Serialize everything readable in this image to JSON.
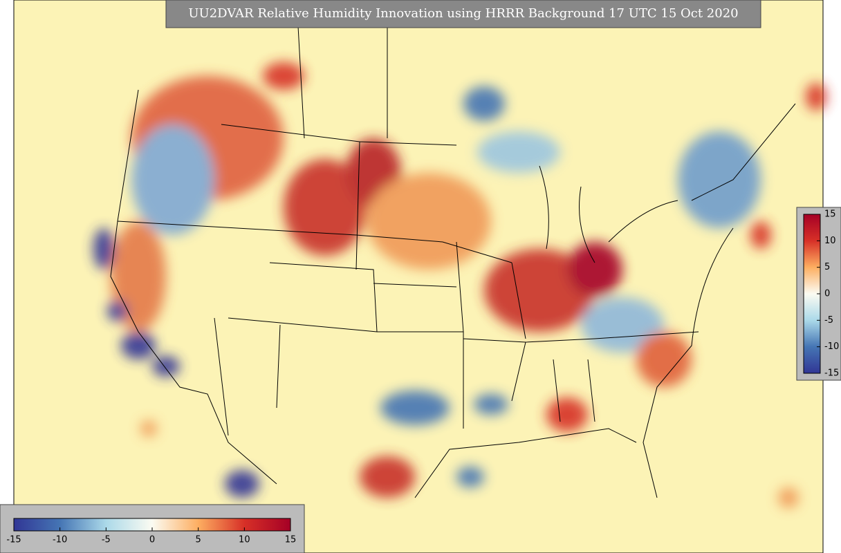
{
  "title": "UU2DVAR Relative Humidity Innovation using HRRR Background 17 UTC 15 Oct 2020",
  "colorbar_range": [
    -15,
    15
  ],
  "colorbar_colors": [
    "#313695",
    "#4575b4",
    "#abd9e9",
    "#fbfbf2",
    "#fdae61",
    "#d73027",
    "#a50026"
  ],
  "colorbars": [
    {
      "orientation": "horizontal",
      "ticks": [
        -15,
        -10,
        -5,
        0,
        5,
        10,
        15
      ]
    },
    {
      "orientation": "vertical",
      "ticks": [
        15,
        10,
        5,
        0,
        -5,
        -10,
        -15
      ]
    }
  ]
}
